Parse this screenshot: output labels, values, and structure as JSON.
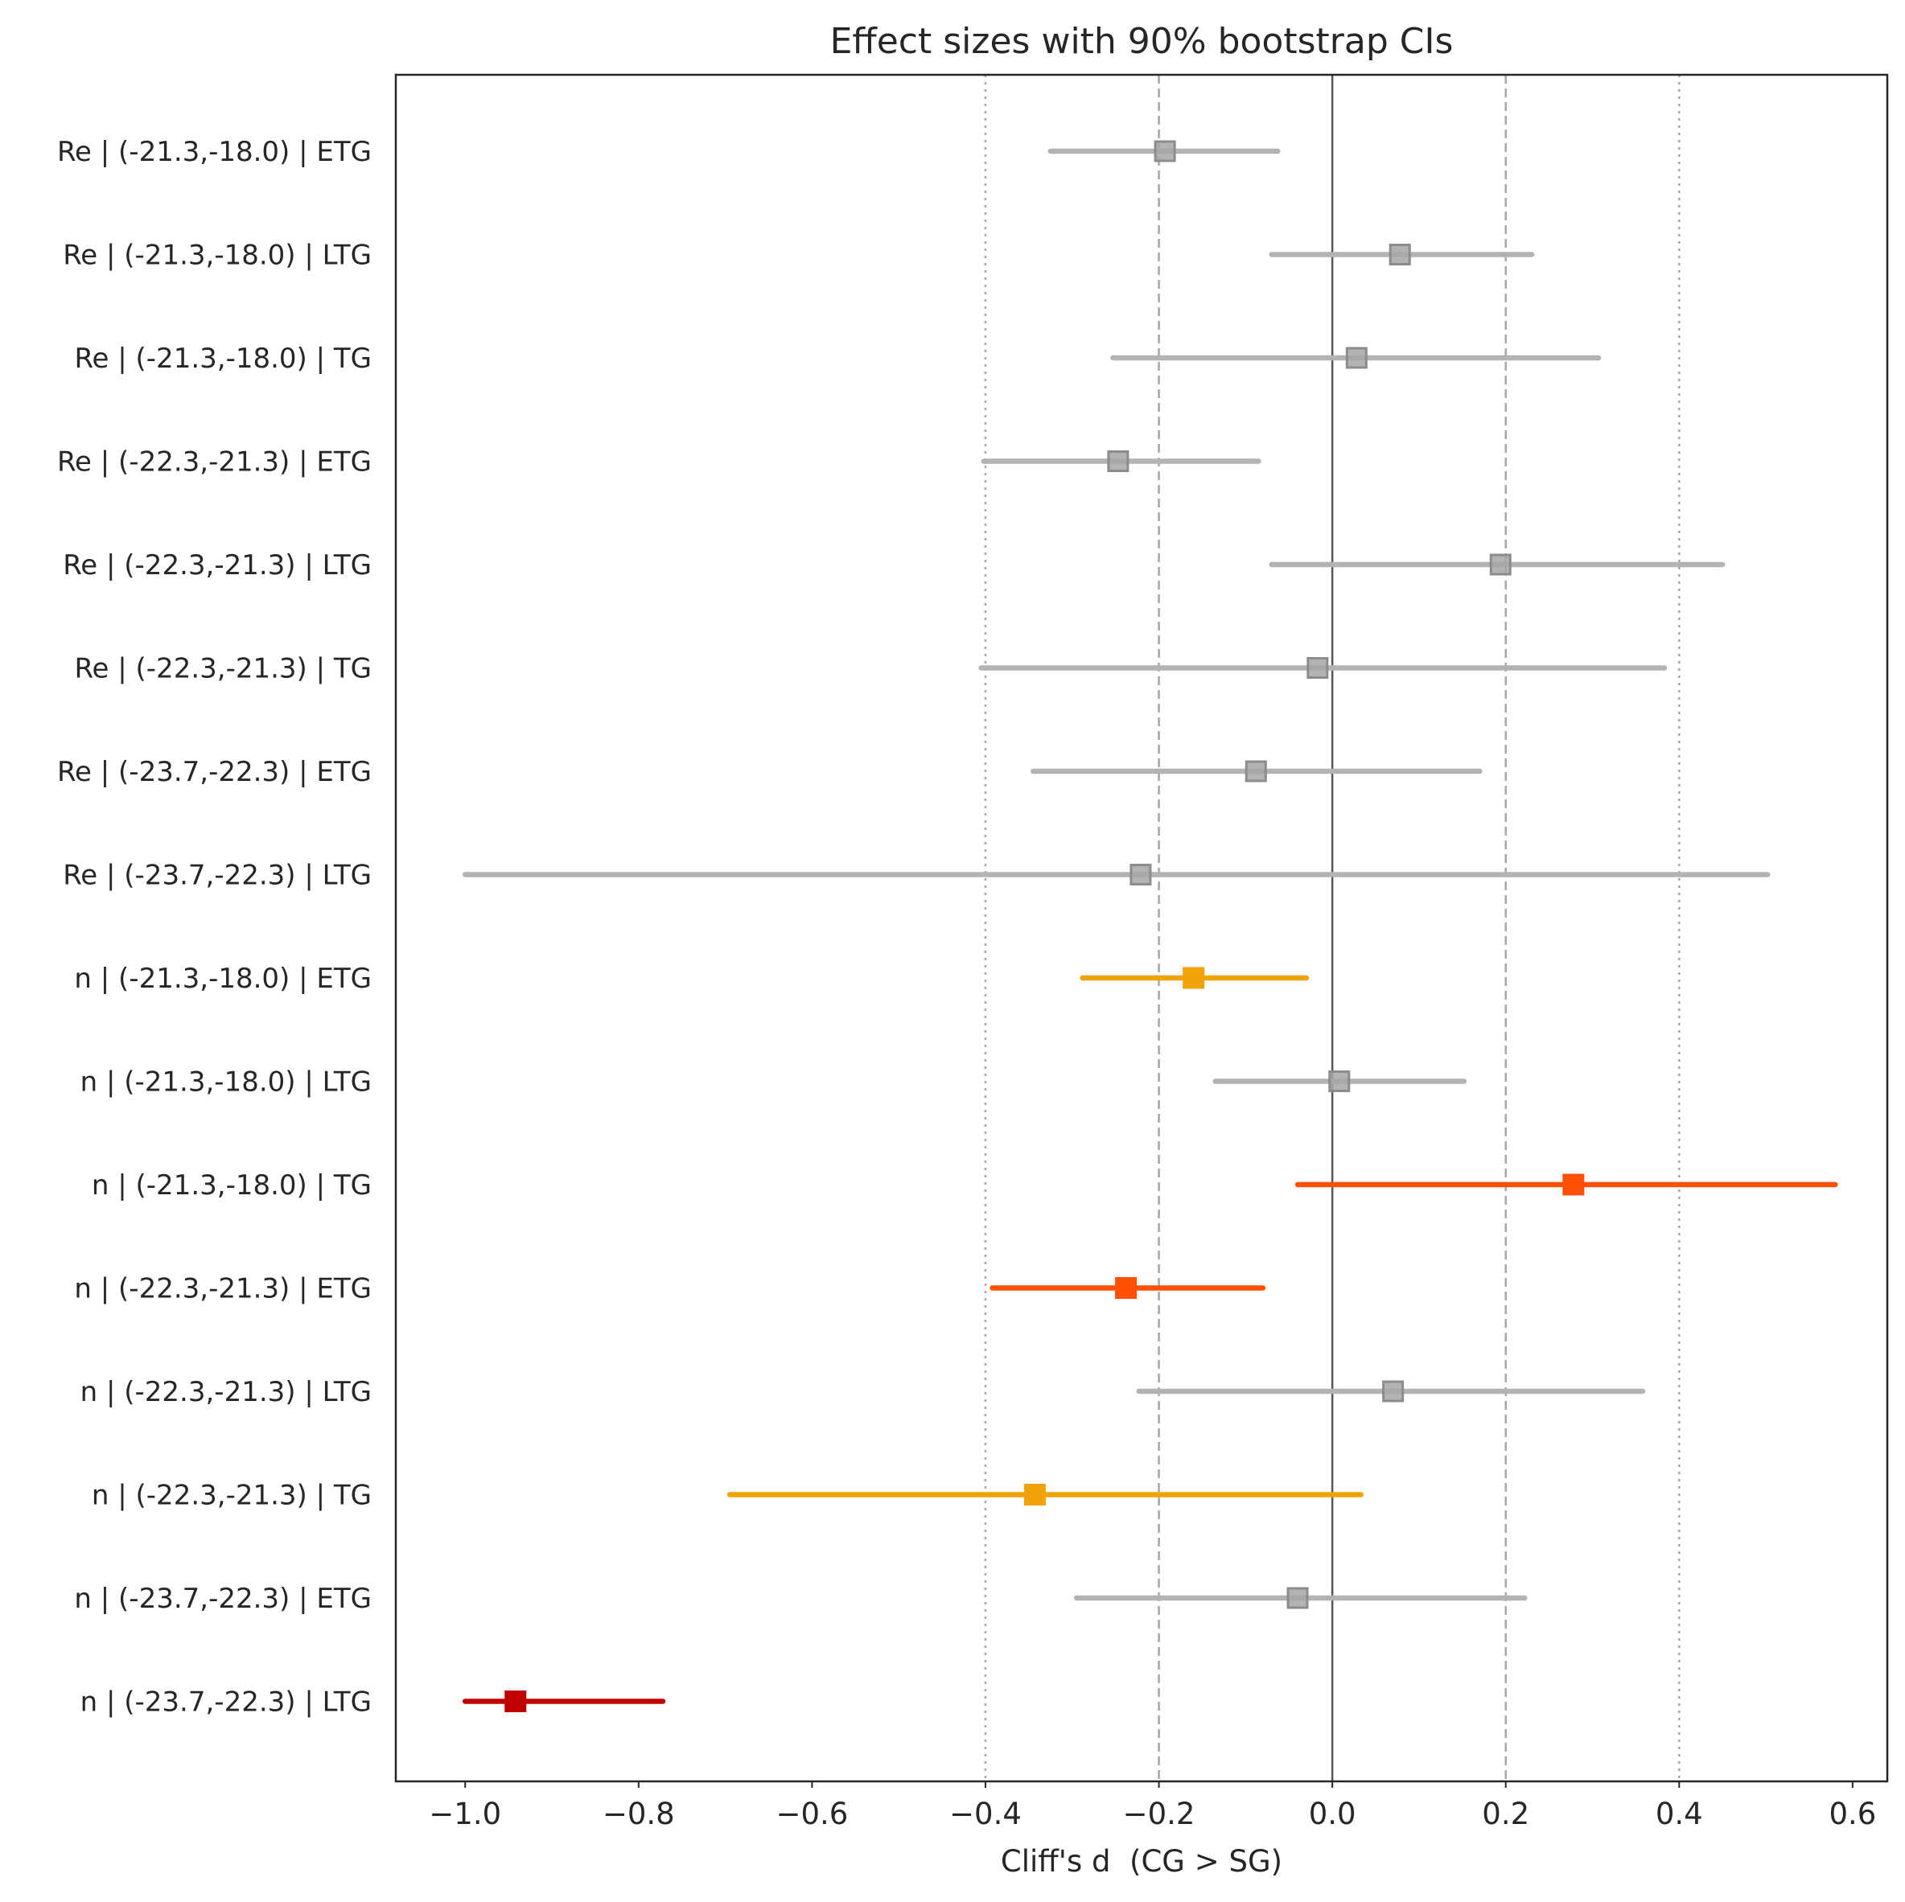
{
  "chart_data": {
    "type": "forest",
    "title": "Effect sizes with 90% bootstrap CIs",
    "xlabel": "Cliff's d  (CG > SG)",
    "ylabel": "",
    "xlim": [
      -1.08,
      0.64
    ],
    "xticks": [
      -1.0,
      -0.8,
      -0.6,
      -0.4,
      -0.2,
      0.0,
      0.2,
      0.4,
      0.6
    ],
    "xtick_labels": [
      "−1.0",
      "−0.8",
      "−0.6",
      "−0.4",
      "−0.2",
      "0.0",
      "0.2",
      "0.4",
      "0.6"
    ],
    "reference_lines": [
      {
        "x": 0.0,
        "style": "solid"
      },
      {
        "x": -0.2,
        "style": "dashed"
      },
      {
        "x": 0.2,
        "style": "dashed"
      },
      {
        "x": -0.4,
        "style": "dotted"
      },
      {
        "x": 0.4,
        "style": "dotted"
      }
    ],
    "grid": false,
    "colors": {
      "nonsignificant": "#b3b3b3",
      "small": "#f0a20a",
      "medium": "#ff5005",
      "large": "#c00000",
      "axis": "#262626",
      "zero_line": "#555555",
      "ref_line": "#a6a6a6"
    },
    "rows": [
      {
        "label": "Re | (-21.3,-18.0) | ETG",
        "d": -0.193,
        "lo": -0.325,
        "hi": -0.063,
        "category": "nonsignificant"
      },
      {
        "label": "Re | (-21.3,-18.0) | LTG",
        "d": 0.078,
        "lo": -0.07,
        "hi": 0.23,
        "category": "nonsignificant"
      },
      {
        "label": "Re | (-21.3,-18.0) | TG",
        "d": 0.028,
        "lo": -0.253,
        "hi": 0.307,
        "category": "nonsignificant"
      },
      {
        "label": "Re | (-22.3,-21.3) | ETG",
        "d": -0.247,
        "lo": -0.402,
        "hi": -0.085,
        "category": "nonsignificant"
      },
      {
        "label": "Re | (-22.3,-21.3) | LTG",
        "d": 0.194,
        "lo": -0.07,
        "hi": 0.45,
        "category": "nonsignificant"
      },
      {
        "label": "Re | (-22.3,-21.3) | TG",
        "d": -0.017,
        "lo": -0.405,
        "hi": 0.383,
        "category": "nonsignificant"
      },
      {
        "label": "Re | (-23.7,-22.3) | ETG",
        "d": -0.088,
        "lo": -0.345,
        "hi": 0.17,
        "category": "nonsignificant"
      },
      {
        "label": "Re | (-23.7,-22.3) | LTG",
        "d": -0.221,
        "lo": -1.0,
        "hi": 0.502,
        "category": "nonsignificant"
      },
      {
        "label": "n | (-21.3,-18.0) | ETG",
        "d": -0.16,
        "lo": -0.288,
        "hi": -0.03,
        "category": "small"
      },
      {
        "label": "n | (-21.3,-18.0) | LTG",
        "d": 0.008,
        "lo": -0.135,
        "hi": 0.152,
        "category": "nonsignificant"
      },
      {
        "label": "n | (-21.3,-18.0) | TG",
        "d": 0.278,
        "lo": -0.04,
        "hi": 0.58,
        "category": "medium"
      },
      {
        "label": "n | (-22.3,-21.3) | ETG",
        "d": -0.238,
        "lo": -0.392,
        "hi": -0.08,
        "category": "medium"
      },
      {
        "label": "n | (-22.3,-21.3) | LTG",
        "d": 0.07,
        "lo": -0.223,
        "hi": 0.358,
        "category": "nonsignificant"
      },
      {
        "label": "n | (-22.3,-21.3) | TG",
        "d": -0.343,
        "lo": -0.695,
        "hi": 0.033,
        "category": "small"
      },
      {
        "label": "n | (-23.7,-22.3) | ETG",
        "d": -0.04,
        "lo": -0.295,
        "hi": 0.222,
        "category": "nonsignificant"
      },
      {
        "label": "n | (-23.7,-22.3) | LTG",
        "d": -0.942,
        "lo": -1.0,
        "hi": -0.772,
        "category": "large"
      }
    ]
  }
}
